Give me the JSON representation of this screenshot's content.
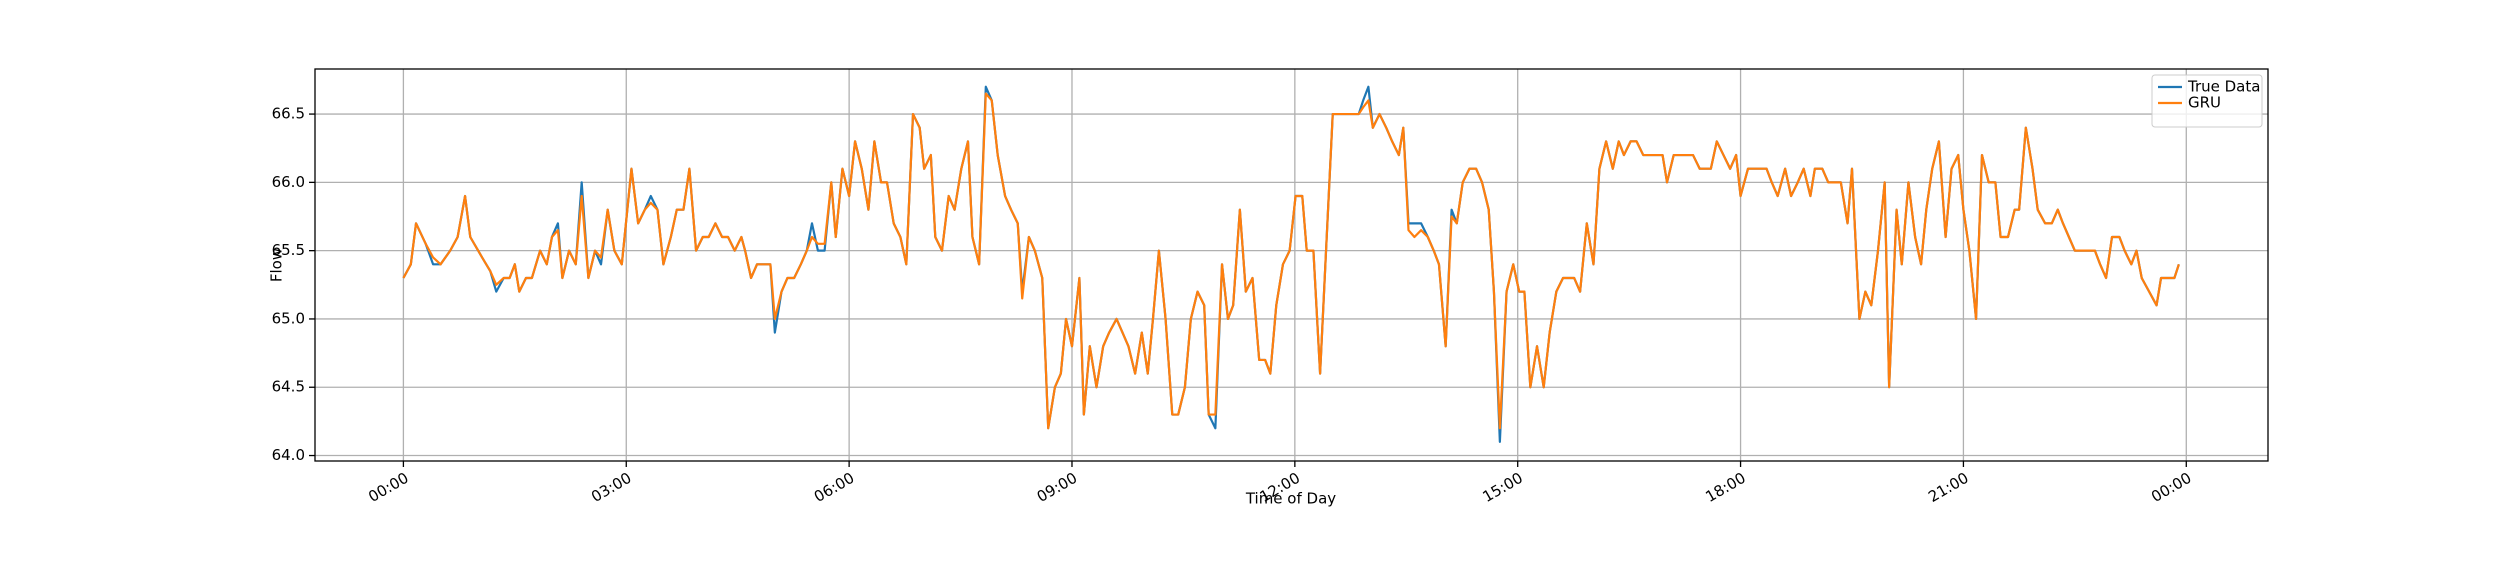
{
  "chart_data": {
    "type": "line",
    "xlabel": "Time of Day",
    "ylabel": "Flow",
    "xlim": [
      -1.19,
      25.1
    ],
    "ylim": [
      63.96,
      66.83
    ],
    "xticks": [
      {
        "value": 0,
        "label": "00:00"
      },
      {
        "value": 3,
        "label": "03:00"
      },
      {
        "value": 6,
        "label": "06:00"
      },
      {
        "value": 9,
        "label": "09:00"
      },
      {
        "value": 12,
        "label": "12:00"
      },
      {
        "value": 15,
        "label": "15:00"
      },
      {
        "value": 18,
        "label": "18:00"
      },
      {
        "value": 21,
        "label": "21:00"
      },
      {
        "value": 24,
        "label": "00:00"
      }
    ],
    "yticks": [
      {
        "value": 64,
        "label": "64.0"
      },
      64.5,
      {
        "value": 65,
        "label": "65.0"
      },
      65.5,
      {
        "value": 66,
        "label": "66.0"
      },
      66.5
    ],
    "grid": true,
    "legend": "upper right",
    "x": [
      0,
      0.1,
      0.17,
      0.3,
      0.4,
      0.5,
      0.63,
      0.73,
      0.83,
      0.9,
      1.06,
      1.17,
      1.25,
      1.35,
      1.43,
      1.5,
      1.56,
      1.65,
      1.73,
      1.84,
      1.93,
      2.0,
      2.08,
      2.14,
      2.23,
      2.32,
      2.4,
      2.49,
      2.58,
      2.66,
      2.75,
      2.84,
      2.94,
      3.07,
      3.16,
      3.25,
      3.33,
      3.42,
      3.5,
      3.6,
      3.68,
      3.77,
      3.85,
      3.94,
      4.03,
      4.11,
      4.2,
      4.29,
      4.37,
      4.46,
      4.55,
      4.6,
      4.68,
      4.76,
      4.85,
      4.94,
      5.0,
      5.09,
      5.17,
      5.26,
      5.35,
      5.43,
      5.5,
      5.58,
      5.67,
      5.76,
      5.82,
      5.91,
      6.0,
      6.08,
      6.17,
      6.26,
      6.34,
      6.43,
      6.51,
      6.6,
      6.69,
      6.77,
      6.86,
      6.95,
      7.01,
      7.1,
      7.16,
      7.25,
      7.34,
      7.42,
      7.51,
      7.6,
      7.66,
      7.75,
      7.84,
      7.92,
      8.0,
      8.1,
      8.18,
      8.27,
      8.33,
      8.42,
      8.5,
      8.6,
      8.68,
      8.77,
      8.85,
      8.92,
      9.0,
      9.1,
      9.16,
      9.24,
      9.33,
      9.42,
      9.5,
      9.6,
      9.68,
      9.76,
      9.85,
      9.94,
      10.02,
      10.09,
      10.17,
      10.26,
      10.35,
      10.43,
      10.52,
      10.6,
      10.69,
      10.78,
      10.84,
      10.93,
      11.02,
      11.1,
      11.17,
      11.26,
      11.34,
      11.43,
      11.52,
      11.6,
      11.67,
      11.75,
      11.84,
      11.93,
      12.01,
      12.1,
      12.16,
      12.25,
      12.34,
      12.42,
      12.51,
      12.6,
      12.68,
      12.77,
      12.86,
      12.92,
      12.99,
      13.05,
      13.14,
      13.23,
      13.31,
      13.4,
      13.46,
      13.53,
      13.61,
      13.7,
      13.79,
      13.87,
      13.94,
      14.03,
      14.11,
      14.18,
      14.26,
      14.35,
      14.44,
      14.52,
      14.61,
      14.68,
      14.76,
      14.85,
      14.94,
      15.02,
      15.09,
      15.17,
      15.26,
      15.35,
      15.43,
      15.52,
      15.61,
      15.67,
      15.76,
      15.84,
      15.93,
      16.02,
      16.1,
      16.19,
      16.28,
      16.36,
      16.43,
      16.52,
      16.6,
      16.69,
      16.77,
      16.86,
      16.95,
      17.01,
      17.1,
      17.19,
      17.27,
      17.36,
      17.45,
      17.53,
      17.6,
      17.68,
      17.77,
      17.86,
      17.94,
      18.0,
      18.1,
      18.18,
      18.27,
      18.35,
      18.42,
      18.5,
      18.6,
      18.68,
      18.77,
      18.85,
      18.94,
      19.0,
      19.1,
      19.18,
      19.26,
      19.35,
      19.44,
      19.5,
      19.6,
      19.68,
      19.76,
      19.85,
      19.94,
      20.0,
      20.1,
      20.17,
      20.26,
      20.35,
      20.43,
      20.5,
      20.58,
      20.67,
      20.76,
      20.84,
      20.93,
      21.0,
      21.08,
      21.17,
      21.25,
      21.34,
      21.43,
      21.5,
      21.6,
      21.69,
      21.75,
      21.84,
      21.93,
      22.0,
      22.1,
      22.19,
      22.27,
      22.34,
      22.42,
      22.5,
      22.6,
      22.68,
      22.77,
      22.84,
      22.92,
      23.0,
      23.1,
      23.17,
      23.26,
      23.33,
      23.4,
      23.5,
      23.6,
      23.66,
      23.75,
      23.84,
      23.9
    ],
    "series": [
      {
        "name": "True Data",
        "color": "#1f77b4",
        "values": [
          65.3,
          65.4,
          65.7,
          65.55,
          65.4,
          65.4,
          65.5,
          65.6,
          65.9,
          65.6,
          65.45,
          65.35,
          65.2,
          65.3,
          65.3,
          65.4,
          65.2,
          65.3,
          65.3,
          65.5,
          65.4,
          65.6,
          65.7,
          65.3,
          65.5,
          65.4,
          66.0,
          65.3,
          65.5,
          65.4,
          65.8,
          65.5,
          65.4,
          66.1,
          65.7,
          65.8,
          65.9,
          65.8,
          65.4,
          65.6,
          65.8,
          65.8,
          66.1,
          65.5,
          65.6,
          65.6,
          65.7,
          65.6,
          65.6,
          65.5,
          65.6,
          65.5,
          65.3,
          65.4,
          65.4,
          65.4,
          64.9,
          65.2,
          65.3,
          65.3,
          65.4,
          65.5,
          65.7,
          65.5,
          65.5,
          66.0,
          65.6,
          66.1,
          65.9,
          66.3,
          66.1,
          65.8,
          66.3,
          66.0,
          66.0,
          65.7,
          65.6,
          65.4,
          66.5,
          66.4,
          66.1,
          66.2,
          65.6,
          65.5,
          65.9,
          65.8,
          66.1,
          66.3,
          65.6,
          65.4,
          66.7,
          66.6,
          66.2,
          65.9,
          65.8,
          65.7,
          65.2,
          65.6,
          65.5,
          65.3,
          64.2,
          64.5,
          64.6,
          65.0,
          64.8,
          65.3,
          64.3,
          64.8,
          64.5,
          64.8,
          64.9,
          65.0,
          64.9,
          64.8,
          64.6,
          64.9,
          64.6,
          65.0,
          65.5,
          65.0,
          64.3,
          64.3,
          64.5,
          65.0,
          65.2,
          65.1,
          64.3,
          64.2,
          65.4,
          65.0,
          65.1,
          65.8,
          65.2,
          65.3,
          64.7,
          64.7,
          64.6,
          65.1,
          65.4,
          65.5,
          65.9,
          65.9,
          65.5,
          65.5,
          64.6,
          65.5,
          66.5,
          66.5,
          66.5,
          66.5,
          66.5,
          66.6,
          66.7,
          66.4,
          66.5,
          66.4,
          66.3,
          66.2,
          66.4,
          65.7,
          65.7,
          65.7,
          65.6,
          65.5,
          65.4,
          64.8,
          65.8,
          65.7,
          66.0,
          66.1,
          66.1,
          66.0,
          65.8,
          65.2,
          64.1,
          65.2,
          65.4,
          65.2,
          65.2,
          64.5,
          64.8,
          64.5,
          64.9,
          65.2,
          65.3,
          65.3,
          65.3,
          65.2,
          65.7,
          65.4,
          66.1,
          66.3,
          66.1,
          66.3,
          66.2,
          66.3,
          66.3,
          66.2,
          66.2,
          66.2,
          66.2,
          66.0,
          66.2,
          66.2,
          66.2,
          66.2,
          66.1,
          66.1,
          66.1,
          66.3,
          66.2,
          66.1,
          66.2,
          65.9,
          66.1,
          66.1,
          66.1,
          66.1,
          66.0,
          65.9,
          66.1,
          65.9,
          66.0,
          66.1,
          65.9,
          66.1,
          66.1,
          66.0,
          66.0,
          66.0,
          65.7,
          66.1,
          65.0,
          65.2,
          65.1,
          65.5,
          66.0,
          64.5,
          65.8,
          65.4,
          66.0,
          65.6,
          65.4,
          65.8,
          66.1,
          66.3,
          65.6,
          66.1,
          66.2,
          65.8,
          65.5,
          65.0,
          66.2,
          66.0,
          66.0,
          65.6,
          65.6,
          65.8,
          65.8,
          66.4,
          66.1,
          65.8,
          65.7,
          65.7,
          65.8,
          65.7,
          65.6,
          65.5,
          65.5,
          65.5,
          65.5,
          65.4,
          65.3,
          65.6,
          65.6,
          65.5,
          65.4,
          65.5,
          65.3,
          65.2,
          65.1,
          65.3,
          65.3,
          65.3,
          65.4
        ]
      },
      {
        "name": "GRU",
        "color": "#ff7f0e",
        "values": [
          65.3,
          65.4,
          65.7,
          65.55,
          65.45,
          65.4,
          65.5,
          65.6,
          65.9,
          65.6,
          65.45,
          65.35,
          65.25,
          65.3,
          65.3,
          65.4,
          65.2,
          65.3,
          65.3,
          65.5,
          65.4,
          65.6,
          65.65,
          65.3,
          65.5,
          65.4,
          65.9,
          65.3,
          65.5,
          65.45,
          65.8,
          65.5,
          65.4,
          66.1,
          65.7,
          65.8,
          65.85,
          65.8,
          65.4,
          65.6,
          65.8,
          65.8,
          66.1,
          65.5,
          65.6,
          65.6,
          65.7,
          65.6,
          65.6,
          65.5,
          65.6,
          65.5,
          65.3,
          65.4,
          65.4,
          65.4,
          65.0,
          65.2,
          65.3,
          65.3,
          65.4,
          65.5,
          65.6,
          65.55,
          65.55,
          66.0,
          65.6,
          66.1,
          65.9,
          66.3,
          66.1,
          65.8,
          66.3,
          66.0,
          66.0,
          65.7,
          65.6,
          65.4,
          66.5,
          66.4,
          66.1,
          66.2,
          65.6,
          65.5,
          65.9,
          65.8,
          66.1,
          66.3,
          65.6,
          65.4,
          66.65,
          66.6,
          66.2,
          65.9,
          65.8,
          65.7,
          65.15,
          65.6,
          65.5,
          65.3,
          64.2,
          64.5,
          64.6,
          65.0,
          64.8,
          65.3,
          64.3,
          64.8,
          64.5,
          64.8,
          64.9,
          65.0,
          64.9,
          64.8,
          64.6,
          64.9,
          64.6,
          65.0,
          65.5,
          65.0,
          64.3,
          64.3,
          64.5,
          65.0,
          65.2,
          65.1,
          64.3,
          64.3,
          65.4,
          65.0,
          65.1,
          65.8,
          65.2,
          65.3,
          64.7,
          64.7,
          64.6,
          65.1,
          65.4,
          65.5,
          65.9,
          65.9,
          65.5,
          65.5,
          64.6,
          65.5,
          66.5,
          66.5,
          66.5,
          66.5,
          66.5,
          66.55,
          66.6,
          66.4,
          66.5,
          66.4,
          66.3,
          66.2,
          66.4,
          65.65,
          65.6,
          65.65,
          65.6,
          65.5,
          65.4,
          64.8,
          65.75,
          65.7,
          66.0,
          66.1,
          66.1,
          66.0,
          65.8,
          65.2,
          64.2,
          65.2,
          65.4,
          65.2,
          65.2,
          64.5,
          64.8,
          64.5,
          64.9,
          65.2,
          65.3,
          65.3,
          65.3,
          65.2,
          65.7,
          65.4,
          66.1,
          66.3,
          66.1,
          66.3,
          66.2,
          66.3,
          66.3,
          66.2,
          66.2,
          66.2,
          66.2,
          66.0,
          66.2,
          66.2,
          66.2,
          66.2,
          66.1,
          66.1,
          66.1,
          66.3,
          66.2,
          66.1,
          66.2,
          65.9,
          66.1,
          66.1,
          66.1,
          66.1,
          66.0,
          65.9,
          66.1,
          65.9,
          66.0,
          66.1,
          65.9,
          66.1,
          66.1,
          66.0,
          66.0,
          66.0,
          65.7,
          66.1,
          65.0,
          65.2,
          65.1,
          65.5,
          66.0,
          64.5,
          65.8,
          65.4,
          66.0,
          65.6,
          65.4,
          65.8,
          66.1,
          66.3,
          65.6,
          66.1,
          66.2,
          65.8,
          65.5,
          65.0,
          66.2,
          66.0,
          66.0,
          65.6,
          65.6,
          65.8,
          65.8,
          66.4,
          66.1,
          65.8,
          65.7,
          65.7,
          65.8,
          65.7,
          65.6,
          65.5,
          65.5,
          65.5,
          65.5,
          65.4,
          65.3,
          65.6,
          65.6,
          65.5,
          65.4,
          65.5,
          65.3,
          65.2,
          65.1,
          65.3,
          65.3,
          65.3,
          65.4
        ]
      }
    ]
  }
}
